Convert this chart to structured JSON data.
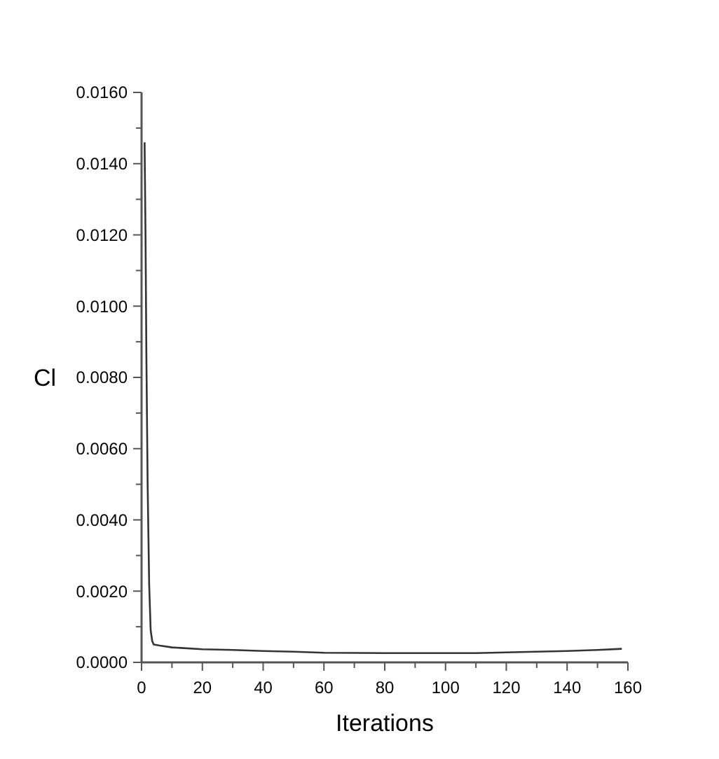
{
  "chart_data": {
    "type": "line",
    "xlabel": "Iterations",
    "ylabel": "Cl",
    "x": [
      1,
      1.3,
      1.6,
      2,
      2.5,
      3,
      3.5,
      4,
      6,
      10,
      20,
      30,
      40,
      50,
      60,
      80,
      100,
      110,
      120,
      130,
      140,
      150,
      158
    ],
    "series": [
      {
        "color": "#333333",
        "values": [
          0.0146,
          0.012,
          0.0085,
          0.005,
          0.0022,
          0.0009,
          0.0006,
          0.0005,
          0.00047,
          0.00042,
          0.00037,
          0.00035,
          0.00032,
          0.0003,
          0.00027,
          0.00026,
          0.00026,
          0.00026,
          0.00028,
          0.0003,
          0.00032,
          0.00035,
          0.00038
        ]
      }
    ],
    "xlim": [
      0,
      160
    ],
    "ylim": [
      0,
      0.016
    ],
    "xticks": [
      0,
      {
        "value": 10,
        "label": null
      },
      20,
      {
        "value": 30,
        "label": null
      },
      40,
      {
        "value": 50,
        "label": null
      },
      60,
      {
        "value": 70,
        "label": null
      },
      80,
      {
        "value": 90,
        "label": null
      },
      100,
      {
        "value": 110,
        "label": null
      },
      120,
      {
        "value": 130,
        "label": null
      },
      140,
      {
        "value": 150,
        "label": null
      },
      160
    ],
    "yticks": [
      {
        "value": 0,
        "label": "0.0000"
      },
      {
        "value": 0.001,
        "label": null
      },
      {
        "value": 0.002,
        "label": "0.0020"
      },
      {
        "value": 0.003,
        "label": null
      },
      {
        "value": 0.004,
        "label": "0.0040"
      },
      {
        "value": 0.005,
        "label": null
      },
      {
        "value": 0.006,
        "label": "0.0060"
      },
      {
        "value": 0.007,
        "label": null
      },
      {
        "value": 0.008,
        "label": "0.0080"
      },
      {
        "value": 0.009,
        "label": null
      },
      {
        "value": 0.01,
        "label": "0.0100"
      },
      {
        "value": 0.011,
        "label": null
      },
      {
        "value": 0.012,
        "label": "0.0120"
      },
      {
        "value": 0.013,
        "label": null
      },
      {
        "value": 0.014,
        "label": "0.0140"
      },
      {
        "value": 0.015,
        "label": null
      },
      {
        "value": 0.016,
        "label": "0.0160"
      }
    ],
    "grid": false,
    "marker": "none",
    "line_style": "solid"
  }
}
